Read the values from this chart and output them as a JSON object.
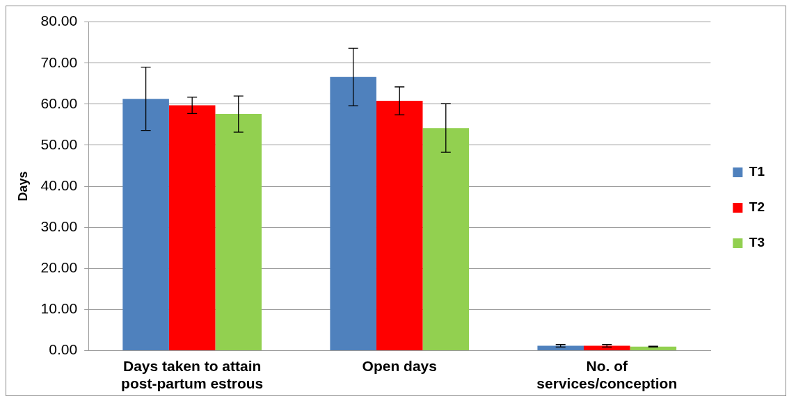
{
  "chart_data": {
    "type": "bar",
    "ylabel": "Days",
    "categories": [
      "Days taken to attain post-partum estrous",
      "Open days",
      "No. of services/conception"
    ],
    "series": [
      {
        "name": "T1",
        "color": "#4f81bd",
        "values": [
          61.3,
          66.6,
          1.2
        ],
        "errors": [
          7.7,
          7.0,
          0.3
        ]
      },
      {
        "name": "T2",
        "color": "#ff0000",
        "values": [
          59.7,
          60.8,
          1.2
        ],
        "errors": [
          2.0,
          3.4,
          0.3
        ]
      },
      {
        "name": "T3",
        "color": "#92d050",
        "values": [
          57.6,
          54.2,
          1.0
        ],
        "errors": [
          4.4,
          5.9,
          0.1
        ]
      }
    ],
    "ylim": [
      0,
      80
    ],
    "yticks": [
      {
        "value": 0,
        "label": "0.00"
      },
      {
        "value": 10,
        "label": "10.00"
      },
      {
        "value": 20,
        "label": "20.00"
      },
      {
        "value": 30,
        "label": "30.00"
      },
      {
        "value": 40,
        "label": "40.00"
      },
      {
        "value": 50,
        "label": "50.00"
      },
      {
        "value": 60,
        "label": "60.00"
      },
      {
        "value": 70,
        "label": "70.00"
      },
      {
        "value": 80,
        "label": "80.00"
      }
    ],
    "grid": "y",
    "legend": "right"
  }
}
